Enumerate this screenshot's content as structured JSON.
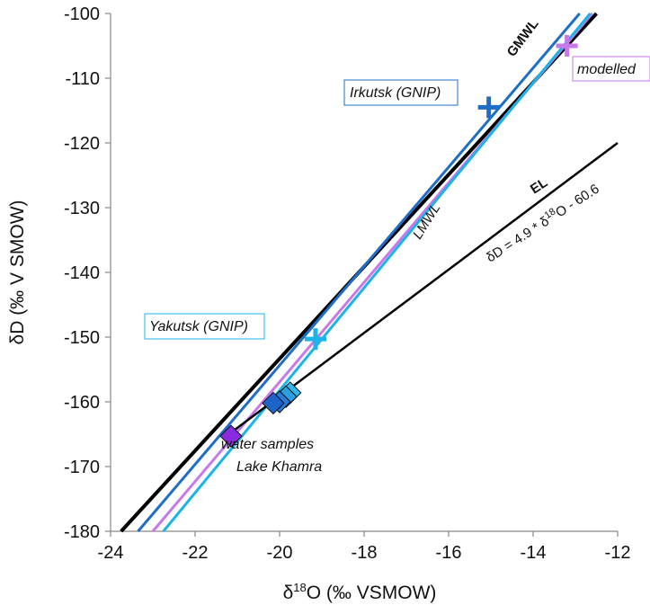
{
  "chart_data": {
    "type": "scatter",
    "xlabel": "δ18O (‰ VSMOW)",
    "xlabel_main": "δ",
    "xlabel_sup": "18",
    "xlabel_rest": "O (‰ VSMOW)",
    "ylabel": "δD (‰ V SMOW)",
    "xlim": [
      -24,
      -12
    ],
    "ylim": [
      -180,
      -100
    ],
    "x_ticks": [
      -24,
      -22,
      -20,
      -18,
      -16,
      -14,
      -12
    ],
    "y_ticks": [
      -180,
      -170,
      -160,
      -150,
      -140,
      -130,
      -120,
      -110,
      -100
    ],
    "grid": false,
    "lines": [
      {
        "name": "GMWL",
        "color": "#000000",
        "x": [
          -23.75,
          -12.5
        ],
        "y": [
          -180,
          -100
        ]
      },
      {
        "name": "",
        "color": "#1e6ec8",
        "x": [
          -23.35,
          -12.9
        ],
        "y": [
          -180,
          -100
        ]
      },
      {
        "name": "",
        "color": "#c879e8",
        "x": [
          -23.0,
          -12.6
        ],
        "y": [
          -180,
          -100
        ]
      },
      {
        "name": "LMWL",
        "color": "#1cb4e8",
        "x": [
          -22.75,
          -12.65
        ],
        "y": [
          -180,
          -100
        ]
      },
      {
        "name": "EL",
        "color": "#000000",
        "x": [
          -21.2,
          -12.0
        ],
        "y": [
          -165.0,
          -120.0
        ]
      }
    ],
    "points": [
      {
        "label": "Irkutsk (GNIP)",
        "marker": "plus",
        "color": "#1e6ec8",
        "x": -15.05,
        "y": -114.5
      },
      {
        "label": "modelled",
        "marker": "plus",
        "color": "#c879e8",
        "x": -13.2,
        "y": -105.0
      },
      {
        "label": "Yakutsk (GNIP)",
        "marker": "plus",
        "color": "#1cb4e8",
        "x": -19.15,
        "y": -150.3
      }
    ],
    "samples": [
      {
        "x": -21.15,
        "y": -165.3,
        "color": "#8b2be0"
      },
      {
        "x": -20.15,
        "y": -160.2,
        "color": "#1e64c8"
      },
      {
        "x": -20.0,
        "y": -160.0,
        "color": "#2a7ad8"
      },
      {
        "x": -19.85,
        "y": -159.2,
        "color": "#2aa0e0"
      },
      {
        "x": -19.75,
        "y": -158.6,
        "color": "#30b8ea"
      }
    ],
    "annotations": {
      "gmwl": "GMWL",
      "lmwl": "LMWL",
      "el": "EL",
      "el_equation_pre": "δD = 4.9 * δ",
      "el_equation_sup": "18",
      "el_equation_post": "O - 60.6",
      "irkutsk": "Irkutsk (GNIP)",
      "yakutsk": "Yakutsk (GNIP)",
      "modelled": "modelled",
      "samples_line1": "water samples",
      "samples_line2": "Lake Khamra"
    }
  }
}
